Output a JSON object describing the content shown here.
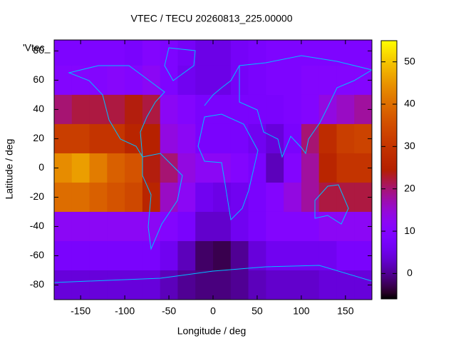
{
  "chart_data": {
    "type": "heatmap",
    "title": "VTEC / TECU 20260813_225.00000",
    "xlabel": "Longitude / deg",
    "ylabel": "Latitude / deg",
    "legend": "'Vtec_",
    "palette": "gnuplot-7-5-15",
    "x": [
      -170,
      -150,
      -130,
      -110,
      -90,
      -70,
      -50,
      -30,
      -10,
      10,
      30,
      50,
      70,
      90,
      110,
      130,
      150,
      170
    ],
    "y": [
      80,
      60,
      40,
      20,
      0,
      -20,
      -40,
      -60,
      -80
    ],
    "z": [
      [
        9,
        9,
        9,
        9,
        8,
        10,
        9,
        7,
        5,
        5,
        7,
        8,
        9,
        9,
        9,
        9,
        9,
        9
      ],
      [
        10,
        10,
        10,
        11,
        10,
        12,
        9,
        6,
        5,
        5,
        7,
        8,
        9,
        9,
        10,
        10,
        10,
        10
      ],
      [
        20,
        22,
        22,
        22,
        24,
        22,
        12,
        10,
        8,
        8,
        8,
        8,
        8,
        9,
        10,
        14,
        16,
        18
      ],
      [
        32,
        32,
        30,
        30,
        26,
        25,
        14,
        12,
        8,
        8,
        8,
        6,
        4,
        8,
        20,
        28,
        32,
        33
      ],
      [
        44,
        46,
        42,
        38,
        36,
        24,
        20,
        14,
        12,
        12,
        10,
        8,
        2,
        10,
        18,
        26,
        30,
        30
      ],
      [
        40,
        40,
        38,
        36,
        34,
        26,
        16,
        12,
        6,
        5,
        6,
        8,
        10,
        14,
        18,
        22,
        22,
        22
      ],
      [
        12,
        12,
        12,
        12,
        12,
        12,
        10,
        8,
        3,
        3,
        6,
        8,
        10,
        10,
        10,
        12,
        12,
        12
      ],
      [
        8,
        8,
        8,
        8,
        8,
        8,
        6,
        2,
        -2,
        -3,
        0,
        4,
        6,
        6,
        6,
        6,
        8,
        8
      ],
      [
        4,
        4,
        4,
        4,
        4,
        4,
        2,
        0,
        -1,
        -1,
        0,
        2,
        3,
        3,
        3,
        4,
        4,
        4
      ]
    ],
    "xlim": [
      -180,
      180
    ],
    "ylim": [
      -90,
      87.5
    ],
    "xticks": [
      -150,
      -100,
      -50,
      0,
      50,
      100,
      150
    ],
    "yticks": [
      -80,
      -60,
      -40,
      -20,
      0,
      20,
      40,
      60,
      80
    ],
    "zlim": [
      -6,
      55
    ],
    "zticks": [
      0,
      10,
      20,
      30,
      40,
      50
    ]
  }
}
